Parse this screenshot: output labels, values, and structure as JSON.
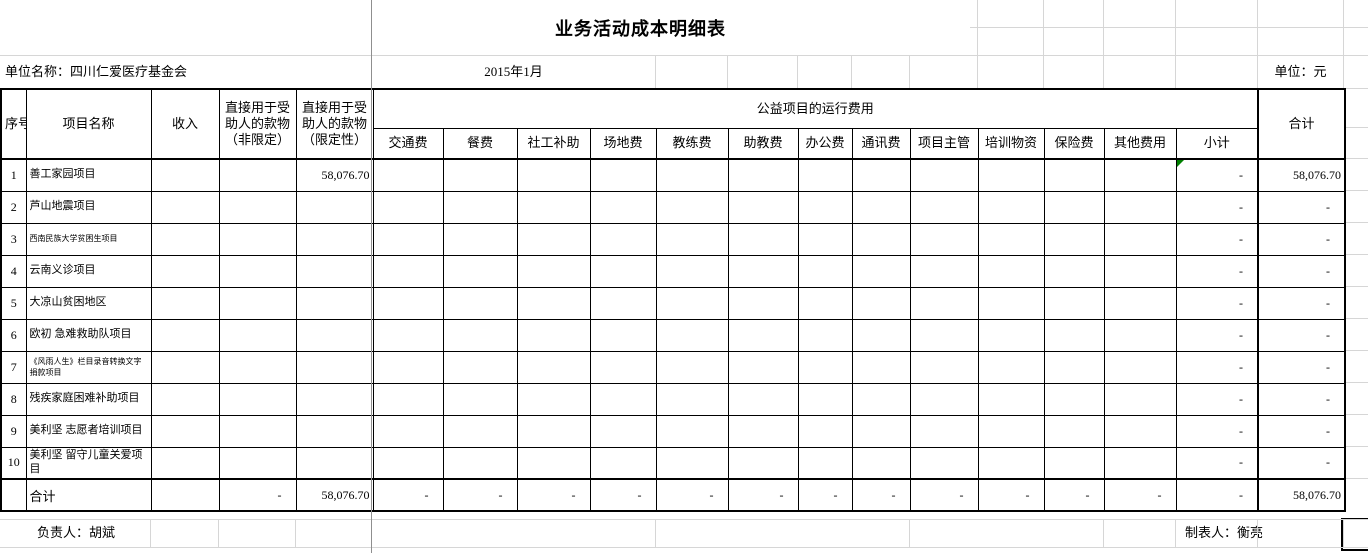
{
  "title": "业务活动成本明细表",
  "info_bar": {
    "unit_name": "单位名称：四川仁爱医疗基金会",
    "period": "2015年1月",
    "unit": "单位：元"
  },
  "table": {
    "col_headers": {
      "index": "序号",
      "project_name": "项目名称",
      "income": "收入",
      "direct_unrestricted": "直接用于受助人的款物（非限定）",
      "direct_restricted": "直接用于受助人的款物（限定性）",
      "operating_group": "公益项目的运行费用",
      "fees": [
        "交通费",
        "餐费",
        "社工补助",
        "场地费",
        "教练费",
        "助教费",
        "办公费",
        "通讯费",
        "项目主管",
        "培训物资",
        "保险费",
        "其他费用"
      ],
      "subtotal": "小计",
      "total": "合计"
    },
    "rows": [
      {
        "no": "1",
        "name": "善工家园项目",
        "income": "",
        "direct_unrestricted": "",
        "direct_restricted": "58,076.70",
        "fees": [
          "",
          "",
          "",
          "",
          "",
          "",
          "",
          "",
          "",
          "",
          "",
          ""
        ],
        "subtotal": "-",
        "total": "58,076.70",
        "has_error_marker": true
      },
      {
        "no": "2",
        "name": "芦山地震项目",
        "income": "",
        "direct_unrestricted": "",
        "direct_restricted": "",
        "fees": [
          "",
          "",
          "",
          "",
          "",
          "",
          "",
          "",
          "",
          "",
          "",
          ""
        ],
        "subtotal": "-",
        "total": "-",
        "has_error_marker": false
      },
      {
        "no": "3",
        "name": "西南民族大学贫困生项目",
        "income": "",
        "direct_unrestricted": "",
        "direct_restricted": "",
        "fees": [
          "",
          "",
          "",
          "",
          "",
          "",
          "",
          "",
          "",
          "",
          "",
          ""
        ],
        "subtotal": "-",
        "total": "-",
        "has_error_marker": false
      },
      {
        "no": "4",
        "name": "云南义诊项目",
        "income": "",
        "direct_unrestricted": "",
        "direct_restricted": "",
        "fees": [
          "",
          "",
          "",
          "",
          "",
          "",
          "",
          "",
          "",
          "",
          "",
          ""
        ],
        "subtotal": "-",
        "total": "-",
        "has_error_marker": false
      },
      {
        "no": "5",
        "name": "大凉山贫困地区",
        "income": "",
        "direct_unrestricted": "",
        "direct_restricted": "",
        "fees": [
          "",
          "",
          "",
          "",
          "",
          "",
          "",
          "",
          "",
          "",
          "",
          ""
        ],
        "subtotal": "-",
        "total": "-",
        "has_error_marker": false
      },
      {
        "no": "6",
        "name": "欧初 急难救助队项目",
        "income": "",
        "direct_unrestricted": "",
        "direct_restricted": "",
        "fees": [
          "",
          "",
          "",
          "",
          "",
          "",
          "",
          "",
          "",
          "",
          "",
          ""
        ],
        "subtotal": "-",
        "total": "-",
        "has_error_marker": false
      },
      {
        "no": "7",
        "name": "《风雨人生》栏目录音转换文字捐款项目",
        "income": "",
        "direct_unrestricted": "",
        "direct_restricted": "",
        "fees": [
          "",
          "",
          "",
          "",
          "",
          "",
          "",
          "",
          "",
          "",
          "",
          ""
        ],
        "subtotal": "-",
        "total": "-",
        "has_error_marker": false
      },
      {
        "no": "8",
        "name": "残疾家庭困难补助项目",
        "income": "",
        "direct_unrestricted": "",
        "direct_restricted": "",
        "fees": [
          "",
          "",
          "",
          "",
          "",
          "",
          "",
          "",
          "",
          "",
          "",
          ""
        ],
        "subtotal": "-",
        "total": "-",
        "has_error_marker": false
      },
      {
        "no": "9",
        "name": "美利坚 志愿者培训项目",
        "income": "",
        "direct_unrestricted": "",
        "direct_restricted": "",
        "fees": [
          "",
          "",
          "",
          "",
          "",
          "",
          "",
          "",
          "",
          "",
          "",
          ""
        ],
        "subtotal": "-",
        "total": "-",
        "has_error_marker": false
      },
      {
        "no": "10",
        "name": "美利坚 留守儿童关爱项目",
        "income": "",
        "direct_unrestricted": "",
        "direct_restricted": "",
        "fees": [
          "",
          "",
          "",
          "",
          "",
          "",
          "",
          "",
          "",
          "",
          "",
          ""
        ],
        "subtotal": "-",
        "total": "-",
        "has_error_marker": false
      }
    ],
    "total_row": {
      "label": "合计",
      "income": "",
      "direct_unrestricted": "-",
      "direct_restricted": "58,076.70",
      "fees": [
        "-",
        "-",
        "-",
        "-",
        "-",
        "-",
        "-",
        "-",
        "-",
        "-",
        "-",
        "-"
      ],
      "subtotal": "-",
      "total": "58,076.70"
    }
  },
  "footer": {
    "responsible": "负责人：胡斌",
    "preparer": "制表人：衡亮"
  }
}
